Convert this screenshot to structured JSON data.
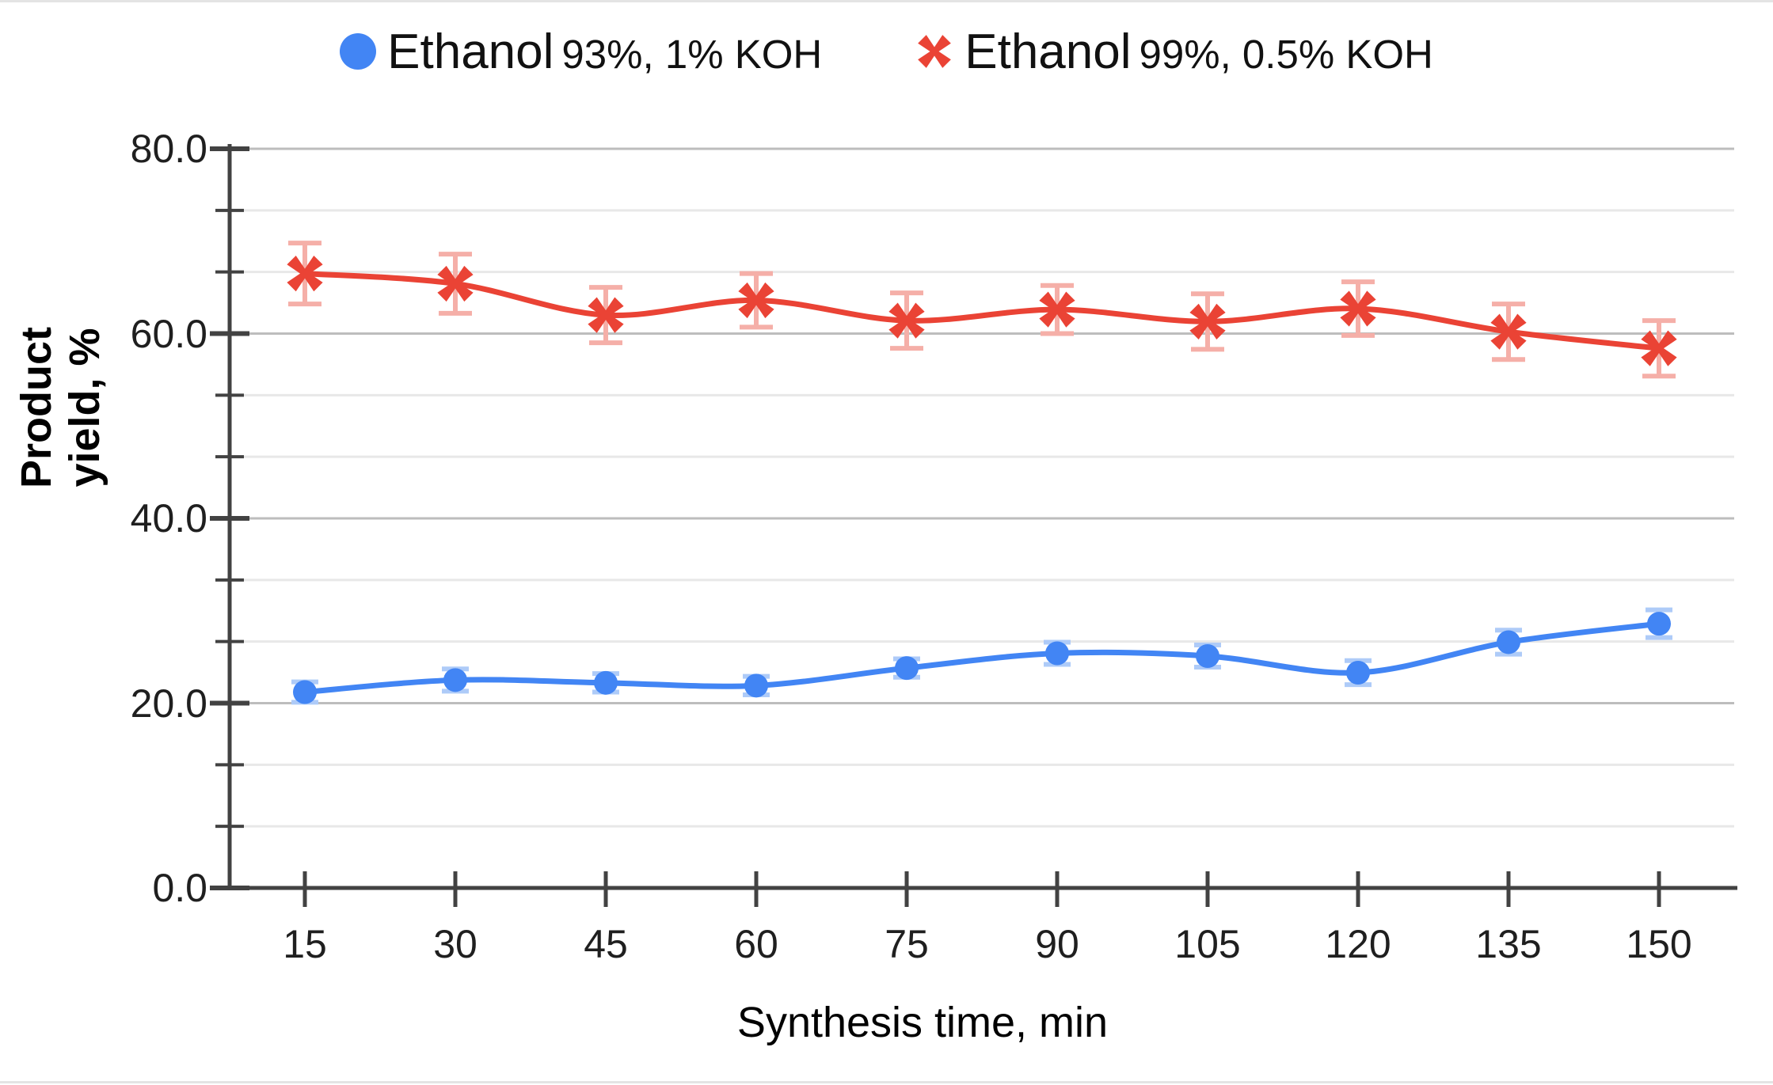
{
  "page": {
    "background": "#ffffff"
  },
  "legend": {
    "position": "top",
    "items": [
      {
        "marker": "circle",
        "color": "#4285F4",
        "label_main": "Ethanol",
        "label_detail": "93%, 1% KOH"
      },
      {
        "marker": "x",
        "color": "#EA4335",
        "label_main": "Ethanol",
        "label_detail": "99%, 0.5% KOH"
      }
    ]
  },
  "y_axis": {
    "title": "Product yield, %",
    "title_lines": [
      "Product",
      "yield, %"
    ],
    "tick_labels": [
      "0.0",
      "20.0",
      "40.0",
      "60.0",
      "80.0"
    ],
    "major_tick_values": [
      0,
      20,
      40,
      60,
      80
    ],
    "minor_tick_values": [
      6.67,
      13.33,
      26.67,
      33.33,
      46.67,
      53.33,
      66.67,
      73.33
    ]
  },
  "x_axis": {
    "title": "Synthesis time, min",
    "tick_labels": [
      "15",
      "30",
      "45",
      "60",
      "75",
      "90",
      "105",
      "120",
      "135",
      "150"
    ]
  },
  "chart_data": {
    "type": "line",
    "x": [
      15,
      30,
      45,
      60,
      75,
      90,
      105,
      120,
      135,
      150
    ],
    "xlabel": "Synthesis time, min",
    "ylabel": "Product yield, %",
    "ylim": [
      0,
      80
    ],
    "xticks": [
      15,
      30,
      45,
      60,
      75,
      90,
      105,
      120,
      135,
      150
    ],
    "y_major_gridlines": [
      20,
      40,
      60,
      80
    ],
    "y_minor_gridlines": [
      6.67,
      13.33,
      26.67,
      33.33,
      46.67,
      53.33,
      66.67,
      73.33
    ],
    "grid": true,
    "legend_position": "top",
    "smooth_lines": true,
    "error_bars": true,
    "series": [
      {
        "name": "Ethanol 93%, 1% KOH",
        "marker": "circle",
        "color": "#4285F4",
        "error_color": "#AECBF8",
        "values": [
          21.2,
          22.5,
          22.2,
          21.9,
          23.8,
          25.4,
          25.1,
          23.3,
          26.6,
          28.6
        ],
        "error": [
          1.1,
          1.2,
          1.0,
          1.0,
          1.0,
          1.2,
          1.2,
          1.3,
          1.3,
          1.5
        ]
      },
      {
        "name": "Ethanol 99%, 0.5% KOH",
        "marker": "x",
        "color": "#EA4335",
        "error_color": "#F5AFA8",
        "values": [
          66.5,
          65.4,
          62.0,
          63.6,
          61.4,
          62.6,
          61.3,
          62.7,
          60.2,
          58.4
        ],
        "error": [
          3.3,
          3.2,
          3.0,
          2.9,
          3.0,
          2.6,
          3.0,
          2.9,
          3.0,
          3.0
        ]
      }
    ],
    "style": {
      "axis_color": "#424242",
      "major_gridline_color": "#bdbdbd",
      "minor_gridline_color": "#e8e8e8",
      "tick_label_color": "#1f1f1f"
    }
  }
}
